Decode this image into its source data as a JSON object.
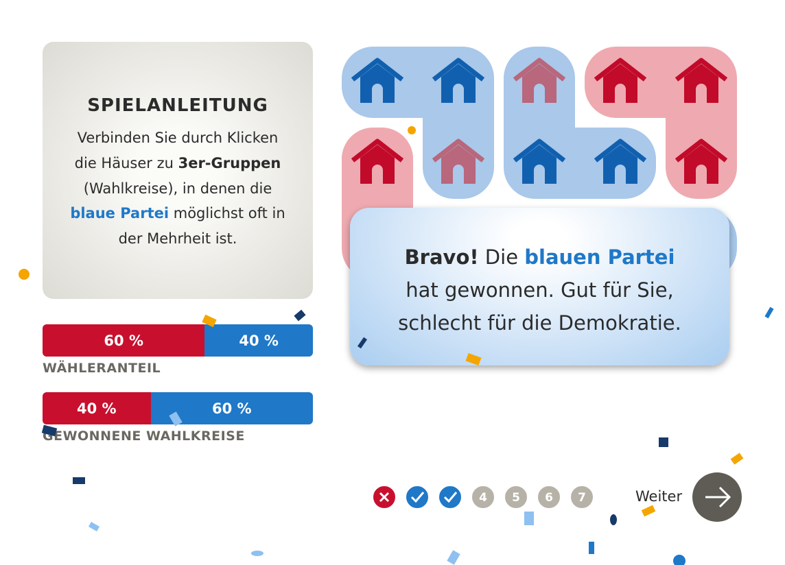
{
  "instructions": {
    "title": "SPIELANLEITUNG",
    "lines": [
      [
        {
          "text": "Verbinden Sie durch Klicken"
        }
      ],
      [
        {
          "text": "die Häuser zu "
        },
        {
          "text": "3er-Gruppen",
          "style": "bold"
        }
      ],
      [
        {
          "text": "(Wahlkreise), in denen die"
        }
      ],
      [
        {
          "text": "blaue Partei",
          "style": "blue"
        },
        {
          "text": " möglichst oft in"
        }
      ],
      [
        {
          "text": "der Mehrheit ist."
        }
      ]
    ]
  },
  "stats": [
    {
      "label": "WÄHLERANTEIL",
      "segments": [
        {
          "color": "#c8102e",
          "value": 60,
          "label": "60 %"
        },
        {
          "color": "#1f78c8",
          "value": 40,
          "label": "40 %"
        }
      ]
    },
    {
      "label": "GEWONNENE WAHLKREISE",
      "segments": [
        {
          "color": "#c8102e",
          "value": 40,
          "label": "40 %"
        },
        {
          "color": "#1f78c8",
          "value": 60,
          "label": "60 %"
        }
      ]
    }
  ],
  "message": {
    "lines": [
      [
        {
          "text": "Bravo!",
          "style": "bold"
        },
        {
          "text": " Die "
        },
        {
          "text": "blauen Partei",
          "style": "blue"
        }
      ],
      [
        {
          "text": "hat gewonnen. Gut für Sie,"
        }
      ],
      [
        {
          "text": "schlecht für die Demokratie."
        }
      ]
    ]
  },
  "levels": [
    {
      "state": "lost"
    },
    {
      "state": "won"
    },
    {
      "state": "won"
    },
    {
      "state": "open",
      "number": 4
    },
    {
      "state": "open",
      "number": 5
    },
    {
      "state": "open",
      "number": 6
    },
    {
      "state": "open",
      "number": 7
    }
  ],
  "next_button": {
    "label": "Weiter"
  }
}
